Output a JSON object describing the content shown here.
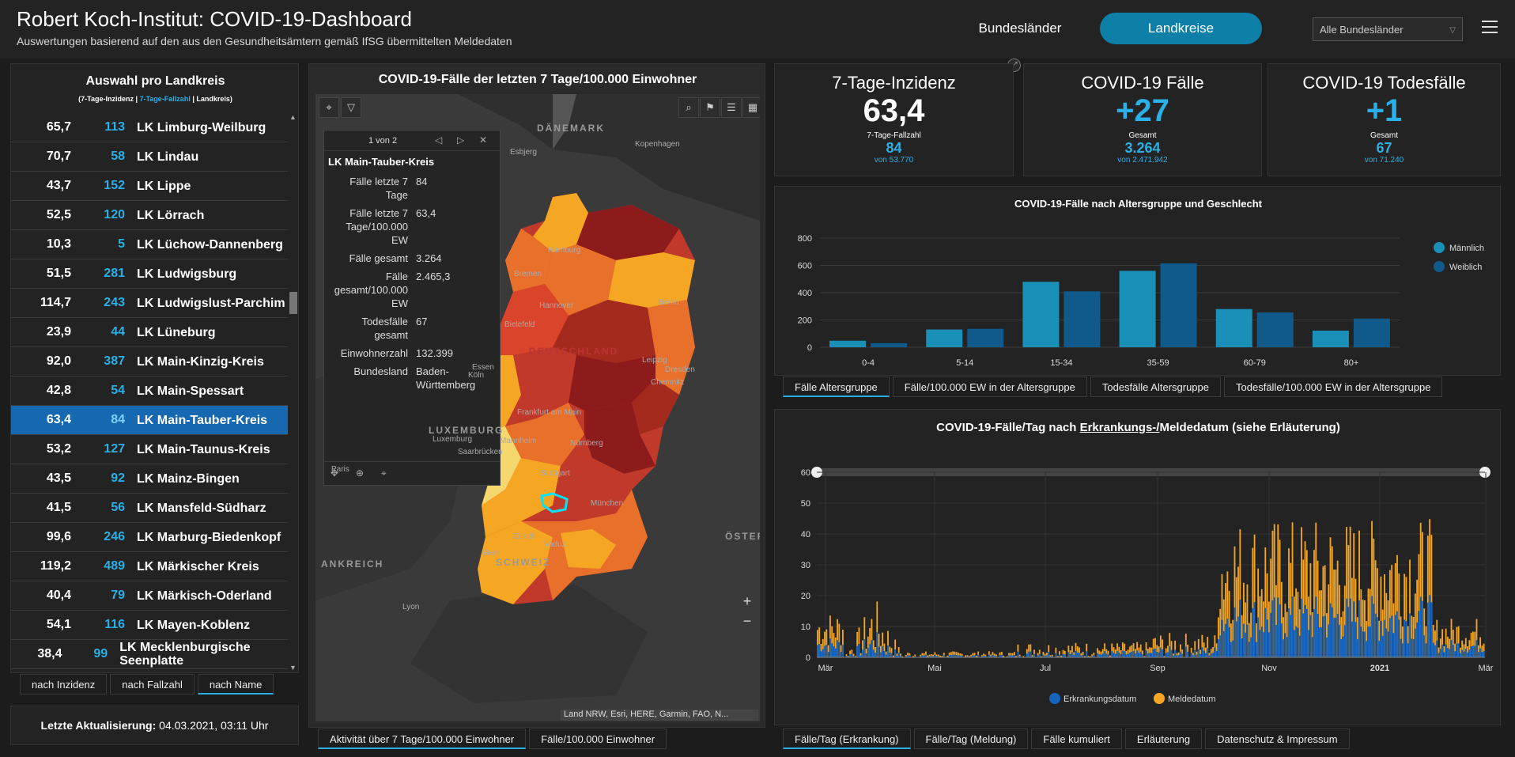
{
  "header": {
    "title": "Robert Koch-Institut: COVID-19-Dashboard",
    "subtitle": "Auswertungen basierend auf den aus den Gesundheitsämtern gemäß IfSG übermittelten Meldedaten",
    "nav_bundeslaender": "Bundesländer",
    "nav_landkreise": "Landkreise",
    "select_value": "Alle Bundesländer"
  },
  "list": {
    "title": "Auswahl pro Landkreis",
    "legend_a": "(7-Tage-Inzidenz | ",
    "legend_b": "7-Tage-Fallzahl",
    "legend_c": " | Landkreis)",
    "rows": [
      {
        "inz": "65,7",
        "fz": "113",
        "name": "LK Limburg-Weilburg"
      },
      {
        "inz": "70,7",
        "fz": "58",
        "name": "LK Lindau"
      },
      {
        "inz": "43,7",
        "fz": "152",
        "name": "LK Lippe"
      },
      {
        "inz": "52,5",
        "fz": "120",
        "name": "LK Lörrach"
      },
      {
        "inz": "10,3",
        "fz": "5",
        "name": "LK Lüchow-Dannenberg"
      },
      {
        "inz": "51,5",
        "fz": "281",
        "name": "LK Ludwigsburg"
      },
      {
        "inz": "114,7",
        "fz": "243",
        "name": "LK Ludwigslust-Parchim"
      },
      {
        "inz": "23,9",
        "fz": "44",
        "name": "LK Lüneburg"
      },
      {
        "inz": "92,0",
        "fz": "387",
        "name": "LK Main-Kinzig-Kreis"
      },
      {
        "inz": "42,8",
        "fz": "54",
        "name": "LK Main-Spessart"
      },
      {
        "inz": "63,4",
        "fz": "84",
        "name": "LK Main-Tauber-Kreis",
        "selected": true
      },
      {
        "inz": "53,2",
        "fz": "127",
        "name": "LK Main-Taunus-Kreis"
      },
      {
        "inz": "43,5",
        "fz": "92",
        "name": "LK Mainz-Bingen"
      },
      {
        "inz": "41,5",
        "fz": "56",
        "name": "LK Mansfeld-Südharz"
      },
      {
        "inz": "99,6",
        "fz": "246",
        "name": "LK Marburg-Biedenkopf"
      },
      {
        "inz": "119,2",
        "fz": "489",
        "name": "LK Märkischer Kreis"
      },
      {
        "inz": "40,4",
        "fz": "79",
        "name": "LK Märkisch-Oderland"
      },
      {
        "inz": "54,1",
        "fz": "116",
        "name": "LK Mayen-Koblenz"
      },
      {
        "inz": "38,4",
        "fz": "99",
        "name": "LK Mecklenburgische Seenplatte"
      }
    ],
    "sort_tabs": [
      "nach Inzidenz",
      "nach Fallzahl",
      "nach Name"
    ]
  },
  "update": {
    "label": "Letzte Aktualisierung:",
    "value": "04.03.2021, 03:11 Uhr"
  },
  "map": {
    "title": "COVID-19-Fälle der letzten 7 Tage/100.000 Einwohner",
    "attribution": "Land NRW, Esri, HERE, Garmin, FAO, N...",
    "tabs": [
      "Aktivität über 7 Tage/100.000 Einwohner",
      "Fälle/100.000 Einwohner"
    ],
    "labels": [
      "DÄNEMARK",
      "Esbjerg",
      "Kopenhagen",
      "Hamburg",
      "Bremen",
      "Hannover",
      "Berlin",
      "Bielefeld",
      "DEUTSCHLAND",
      "Essen",
      "Leipzig",
      "Köln",
      "Dresden",
      "Chemnitz",
      "Frankfurt am Main",
      "LUXEMBURG",
      "Luxemburg",
      "Mannheim",
      "Nürnberg",
      "Saarbrücken",
      "Paris",
      "Stuttgart",
      "München",
      "Zürich",
      "Vaduz",
      "Bern",
      "SCHWEIZ",
      "ÖSTER",
      "ANKREICH",
      "Lyon"
    ],
    "popup": {
      "count": "1 von 2",
      "name": "LK Main-Tauber-Kreis",
      "rows": [
        {
          "k": "Fälle letzte 7 Tage",
          "v": "84"
        },
        {
          "k": "Fälle letzte 7 Tage/100.000 EW",
          "v": "63,4"
        },
        {
          "k": "Fälle gesamt",
          "v": "3.264"
        },
        {
          "k": "Fälle gesamt/100.000 EW",
          "v": "2.465,3"
        },
        {
          "k": "Todesfälle gesamt",
          "v": "67"
        },
        {
          "k": "Einwohnerzahl",
          "v": "132.399"
        },
        {
          "k": "Bundesland",
          "v": "Baden-Württemberg"
        }
      ]
    }
  },
  "kpi": [
    {
      "title": "7-Tage-Inzidenz",
      "value": "63,4",
      "sub_label": "7-Tage-Fallzahl",
      "sub_value": "84",
      "foot": "von 53.770",
      "color": "#ffffff"
    },
    {
      "title": "COVID-19 Fälle",
      "value": "+27",
      "sub_label": "Gesamt",
      "sub_value": "3.264",
      "foot": "von 2.471.942",
      "color": "#2ab0e6"
    },
    {
      "title": "COVID-19 Todesfälle",
      "value": "+1",
      "sub_label": "Gesamt",
      "sub_value": "67",
      "foot": "von 71.240",
      "color": "#2ab0e6"
    }
  ],
  "age_tabs": [
    "Fälle Altersgruppe",
    "Fälle/100.000 EW in der Altersgruppe",
    "Todesfälle Altersgruppe",
    "Todesfälle/100.000 EW in der Altersgruppe"
  ],
  "ts_title_a": "COVID-19-Fälle/Tag nach ",
  "ts_title_b": "Erkrankungs-/",
  "ts_title_c": "Meldedatum (siehe Erläuterung)",
  "ts_tabs": [
    "Fälle/Tag (Erkrankung)",
    "Fälle/Tag (Meldung)",
    "Fälle kumuliert",
    "Erläuterung",
    "Datenschutz & Impressum"
  ],
  "chart_data": [
    {
      "type": "bar",
      "title": "COVID-19-Fälle nach Altersgruppe und Geschlecht",
      "categories": [
        "0-4",
        "5-14",
        "15-34",
        "35-59",
        "60-79",
        "80+"
      ],
      "series": [
        {
          "name": "Männlich",
          "values": [
            48,
            130,
            480,
            560,
            280,
            122
          ],
          "color": "#1a8fb8"
        },
        {
          "name": "Weiblich",
          "values": [
            30,
            135,
            410,
            615,
            255,
            210
          ],
          "color": "#0f5a8a"
        }
      ],
      "ylim": [
        0,
        800
      ],
      "yticks": [
        0,
        200,
        400,
        600,
        800
      ],
      "legend": "right"
    },
    {
      "type": "bar",
      "title": "COVID-19-Fälle/Tag nach Erkrankungs-/Meldedatum (siehe Erläuterung)",
      "x_ticks": [
        "Mär",
        "Mai",
        "Jul",
        "Sep",
        "Nov",
        "2021",
        "Mär"
      ],
      "ylim": [
        0,
        60
      ],
      "yticks": [
        0,
        10,
        20,
        30,
        40,
        50,
        60
      ],
      "legend": "bottom",
      "series": [
        {
          "name": "Erkrankungsdatum",
          "color": "#1565c0"
        },
        {
          "name": "Meldedatum",
          "color": "#f5a623"
        }
      ]
    }
  ]
}
